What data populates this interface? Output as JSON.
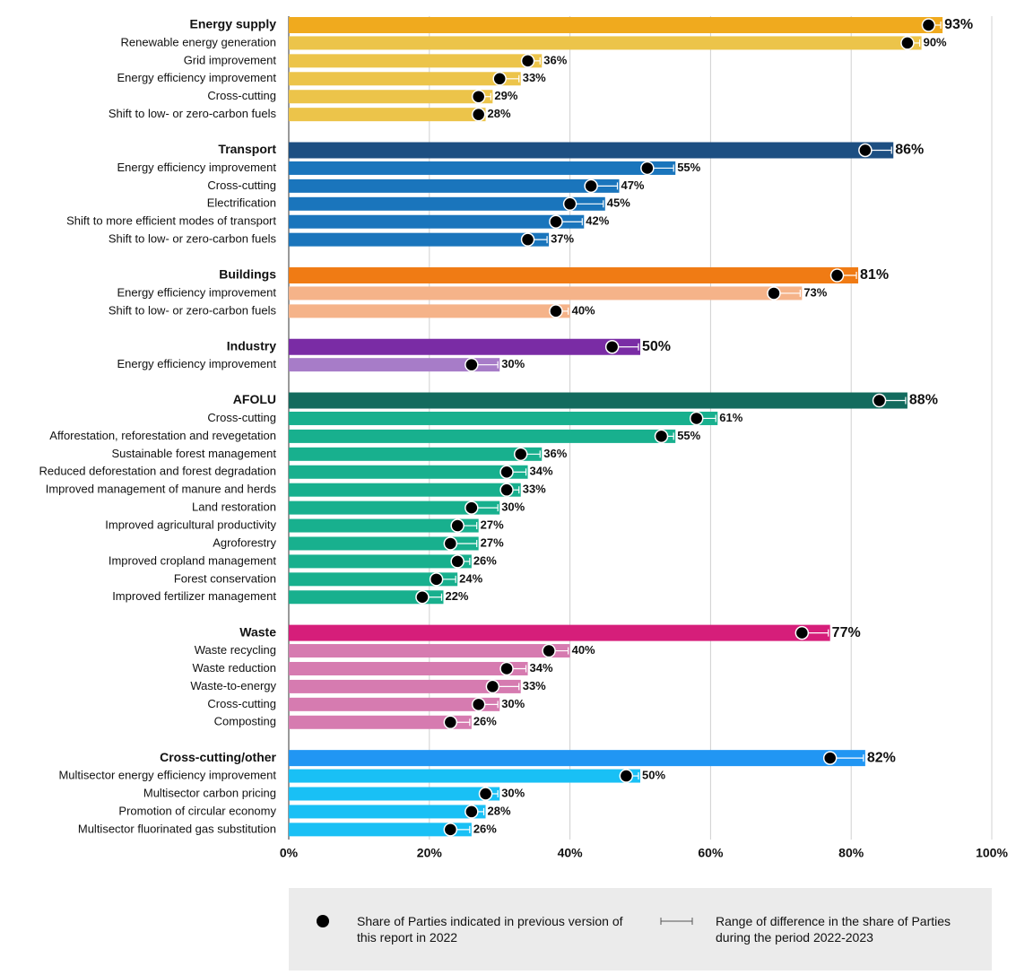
{
  "chart_data": {
    "type": "bar",
    "orientation": "horizontal",
    "xlim": [
      0,
      100
    ],
    "xticks": [
      {
        "value": 0,
        "label": "0%"
      },
      {
        "value": 20,
        "label": "20%"
      },
      {
        "value": 40,
        "label": "40%"
      },
      {
        "value": 60,
        "label": "60%"
      },
      {
        "value": 80,
        "label": "80%"
      },
      {
        "value": 100,
        "label": "100%"
      }
    ],
    "grid": true,
    "previous_name": "Share of Parties indicated in previous version of this report in 2022",
    "range_name": "Range of difference in the share of Parties during the period 2022-2023",
    "groups": [
      {
        "name": "Energy supply",
        "color": "#f0aa1e",
        "item_color": "#ecc44a",
        "value": 93,
        "value_label": "93%",
        "previous": 91,
        "items": [
          {
            "name": "Renewable energy generation",
            "value": 90,
            "value_label": "90%",
            "previous": 88
          },
          {
            "name": "Grid improvement",
            "value": 36,
            "value_label": "36%",
            "previous": 34
          },
          {
            "name": "Energy efficiency improvement",
            "value": 33,
            "value_label": "33%",
            "previous": 30
          },
          {
            "name": "Cross-cutting",
            "value": 29,
            "value_label": "29%",
            "previous": 27
          },
          {
            "name": "Shift to low- or zero-carbon fuels",
            "value": 28,
            "value_label": "28%",
            "previous": 27
          }
        ]
      },
      {
        "name": "Transport",
        "color": "#1d4f82",
        "item_color": "#1a75bc",
        "value": 86,
        "value_label": "86%",
        "previous": 82,
        "items": [
          {
            "name": "Energy efficiency improvement",
            "value": 55,
            "value_label": "55%",
            "previous": 51
          },
          {
            "name": "Cross-cutting",
            "value": 47,
            "value_label": "47%",
            "previous": 43
          },
          {
            "name": "Electrification",
            "value": 45,
            "value_label": "45%",
            "previous": 40
          },
          {
            "name": "Shift to more efficient modes of transport",
            "value": 42,
            "value_label": "42%",
            "previous": 38
          },
          {
            "name": "Shift to low- or zero-carbon fuels",
            "value": 37,
            "value_label": "37%",
            "previous": 34
          }
        ]
      },
      {
        "name": "Buildings",
        "color": "#f07b14",
        "item_color": "#f5b389",
        "value": 81,
        "value_label": "81%",
        "previous": 78,
        "items": [
          {
            "name": "Energy efficiency improvement",
            "value": 73,
            "value_label": "73%",
            "previous": 69
          },
          {
            "name": "Shift to low- or zero-carbon fuels",
            "value": 40,
            "value_label": "40%",
            "previous": 38
          }
        ]
      },
      {
        "name": "Industry",
        "color": "#7a2ca5",
        "item_color": "#a77cc8",
        "value": 50,
        "value_label": "50%",
        "previous": 46,
        "items": [
          {
            "name": "Energy efficiency improvement",
            "value": 30,
            "value_label": "30%",
            "previous": 26
          }
        ]
      },
      {
        "name": "AFOLU",
        "color": "#136b5e",
        "item_color": "#18b08e",
        "value": 88,
        "value_label": "88%",
        "previous": 84,
        "items": [
          {
            "name": "Cross-cutting",
            "value": 61,
            "value_label": "61%",
            "previous": 58
          },
          {
            "name": "Afforestation, reforestation and revegetation",
            "value": 55,
            "value_label": "55%",
            "previous": 53
          },
          {
            "name": "Sustainable forest management",
            "value": 36,
            "value_label": "36%",
            "previous": 33
          },
          {
            "name": "Reduced deforestation and forest degradation",
            "value": 34,
            "value_label": "34%",
            "previous": 31
          },
          {
            "name": "Improved management of manure and herds",
            "value": 33,
            "value_label": "33%",
            "previous": 31
          },
          {
            "name": "Land restoration",
            "value": 30,
            "value_label": "30%",
            "previous": 26
          },
          {
            "name": "Improved agricultural productivity",
            "value": 27,
            "value_label": "27%",
            "previous": 24
          },
          {
            "name": "Agroforestry",
            "value": 27,
            "value_label": "27%",
            "previous": 23
          },
          {
            "name": "Improved cropland management",
            "value": 26,
            "value_label": "26%",
            "previous": 24
          },
          {
            "name": "Forest conservation",
            "value": 24,
            "value_label": "24%",
            "previous": 21
          },
          {
            "name": "Improved fertilizer management",
            "value": 22,
            "value_label": "22%",
            "previous": 19
          }
        ]
      },
      {
        "name": "Waste",
        "color": "#d61e7a",
        "item_color": "#d67bb0",
        "value": 77,
        "value_label": "77%",
        "previous": 73,
        "items": [
          {
            "name": "Waste recycling",
            "value": 40,
            "value_label": "40%",
            "previous": 37
          },
          {
            "name": "Waste reduction",
            "value": 34,
            "value_label": "34%",
            "previous": 31
          },
          {
            "name": "Waste-to-energy",
            "value": 33,
            "value_label": "33%",
            "previous": 29
          },
          {
            "name": "Cross-cutting",
            "value": 30,
            "value_label": "30%",
            "previous": 27
          },
          {
            "name": "Composting",
            "value": 26,
            "value_label": "26%",
            "previous": 23
          }
        ]
      },
      {
        "name": "Cross-cutting/other",
        "color": "#2196f3",
        "item_color": "#19c0f5",
        "value": 82,
        "value_label": "82%",
        "previous": 77,
        "items": [
          {
            "name": "Multisector energy efficiency improvement",
            "value": 50,
            "value_label": "50%",
            "previous": 48
          },
          {
            "name": "Multisector carbon pricing",
            "value": 30,
            "value_label": "30%",
            "previous": 28
          },
          {
            "name": "Promotion of circular economy",
            "value": 28,
            "value_label": "28%",
            "previous": 26
          },
          {
            "name": "Multisector fluorinated gas substitution",
            "value": 26,
            "value_label": "26%",
            "previous": 23
          }
        ]
      }
    ]
  }
}
